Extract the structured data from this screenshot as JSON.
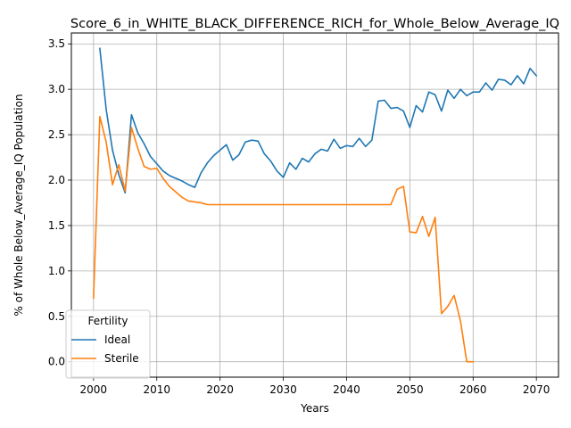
{
  "chart_data": {
    "type": "line",
    "title": "Score_6_in_WHITE_BLACK_DIFFERENCE_RICH_for_Whole_Below_Average_IQ",
    "xlabel": "Years",
    "ylabel": "% of Whole Below_Average_IQ Population",
    "xlim": [
      1996.5,
      2073.5
    ],
    "ylim": [
      -0.17,
      3.62
    ],
    "xticks": [
      2000,
      2010,
      2020,
      2030,
      2040,
      2050,
      2060,
      2070
    ],
    "yticks": [
      0.0,
      0.5,
      1.0,
      1.5,
      2.0,
      2.5,
      3.0,
      3.5
    ],
    "grid": true,
    "legend": {
      "title": "Fertility",
      "placement": "lower-left"
    },
    "series": [
      {
        "name": "Ideal",
        "color": "#1f77b4",
        "x": [
          2001,
          2002,
          2003,
          2004,
          2005,
          2006,
          2007,
          2008,
          2009,
          2010,
          2011,
          2012,
          2013,
          2014,
          2015,
          2016,
          2017,
          2018,
          2019,
          2020,
          2021,
          2022,
          2023,
          2024,
          2025,
          2026,
          2027,
          2028,
          2029,
          2030,
          2031,
          2032,
          2033,
          2034,
          2035,
          2036,
          2037,
          2038,
          2039,
          2040,
          2041,
          2042,
          2043,
          2044,
          2045,
          2046,
          2047,
          2048,
          2049,
          2050,
          2051,
          2052,
          2053,
          2054,
          2055,
          2056,
          2057,
          2058,
          2059,
          2060,
          2061,
          2062,
          2063,
          2064,
          2065,
          2066,
          2067,
          2068,
          2069,
          2070
        ],
        "y": [
          3.45,
          2.78,
          2.33,
          2.06,
          1.86,
          2.72,
          2.52,
          2.4,
          2.26,
          2.18,
          2.1,
          2.05,
          2.02,
          1.99,
          1.95,
          1.92,
          2.08,
          2.19,
          2.27,
          2.33,
          2.39,
          2.22,
          2.28,
          2.42,
          2.44,
          2.43,
          2.29,
          2.21,
          2.1,
          2.03,
          2.19,
          2.12,
          2.24,
          2.2,
          2.29,
          2.34,
          2.32,
          2.45,
          2.35,
          2.38,
          2.37,
          2.46,
          2.37,
          2.44,
          2.87,
          2.88,
          2.79,
          2.8,
          2.76,
          2.58,
          2.82,
          2.75,
          2.97,
          2.94,
          2.76,
          2.99,
          2.9,
          3.0,
          2.93,
          2.97,
          2.97,
          3.07,
          2.99,
          3.11,
          3.1,
          3.05,
          3.15,
          3.06,
          3.23,
          3.15
        ]
      },
      {
        "name": "Sterile",
        "color": "#ff7f0e",
        "x": [
          2000,
          2001,
          2002,
          2003,
          2004,
          2005,
          2006,
          2007,
          2008,
          2009,
          2010,
          2011,
          2012,
          2013,
          2014,
          2015,
          2016,
          2017,
          2018,
          2019,
          2020,
          2021,
          2022,
          2023,
          2024,
          2025,
          2026,
          2027,
          2028,
          2029,
          2030,
          2031,
          2032,
          2033,
          2034,
          2035,
          2036,
          2037,
          2038,
          2039,
          2040,
          2041,
          2042,
          2043,
          2044,
          2045,
          2046,
          2047,
          2048,
          2049,
          2050,
          2051,
          2052,
          2053,
          2054,
          2055,
          2056,
          2057,
          2058,
          2059,
          2060
        ],
        "y": [
          0.7,
          2.7,
          2.42,
          1.95,
          2.17,
          1.88,
          2.58,
          2.35,
          2.15,
          2.12,
          2.13,
          2.02,
          1.93,
          1.87,
          1.81,
          1.77,
          1.76,
          1.75,
          1.73,
          1.73,
          1.73,
          1.73,
          1.73,
          1.73,
          1.73,
          1.73,
          1.73,
          1.73,
          1.73,
          1.73,
          1.73,
          1.73,
          1.73,
          1.73,
          1.73,
          1.73,
          1.73,
          1.73,
          1.73,
          1.73,
          1.73,
          1.73,
          1.73,
          1.73,
          1.73,
          1.73,
          1.73,
          1.73,
          1.9,
          1.93,
          1.43,
          1.42,
          1.6,
          1.38,
          1.59,
          0.53,
          0.61,
          0.73,
          0.45,
          0.0,
          0.0
        ]
      }
    ]
  }
}
